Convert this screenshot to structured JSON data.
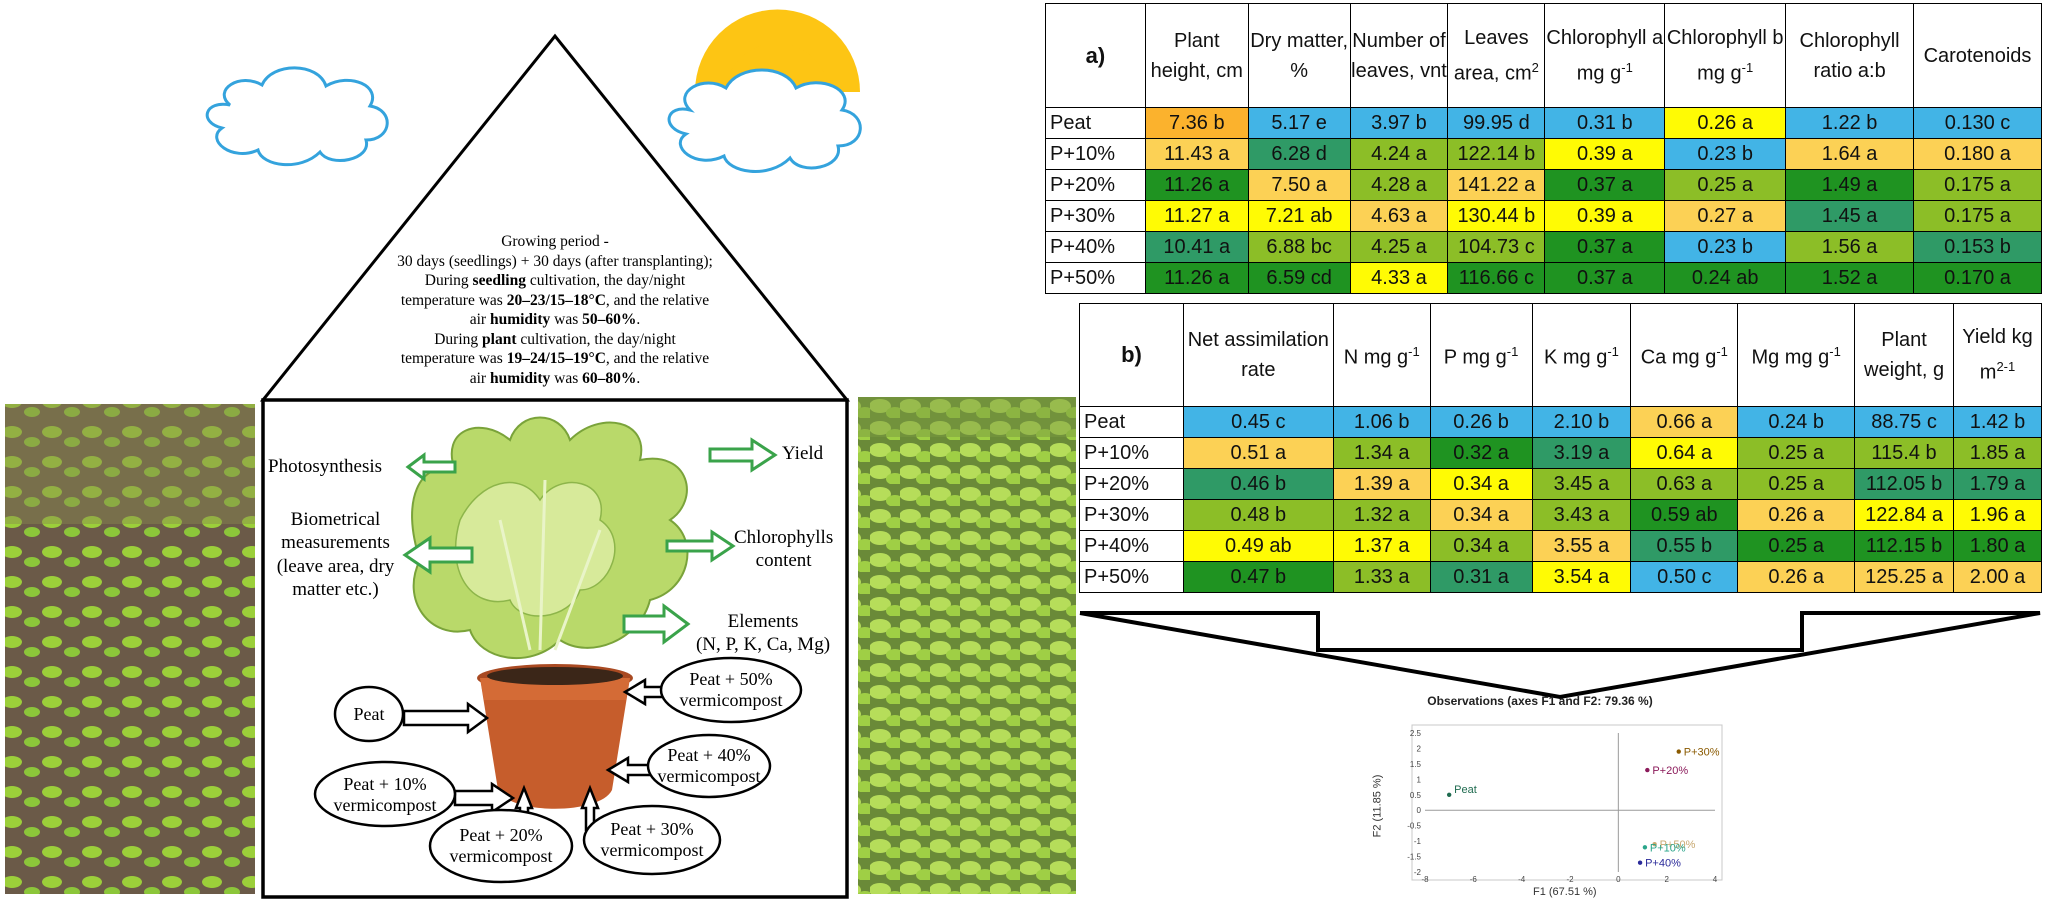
{
  "diagram": {
    "growing_period": {
      "l1": "Growing period -",
      "l2": "30 days (seedlings) + 30 days (after transplanting);",
      "l3a": "During ",
      "l3b": "seedling",
      "l3c": " cultivation, the day/night",
      "l4a": "temperature was ",
      "l4b": "20–23/15–18°C",
      "l4c": ", and the relative",
      "l5a": "air ",
      "l5b": "humidity",
      "l5c": " was ",
      "l5d": "50–60%",
      "l5e": ".",
      "l6a": "During ",
      "l6b": "plant",
      "l6c": " cultivation, the day/night",
      "l7a": "temperature was ",
      "l7b": "19–24/15–19°C",
      "l7c": ", and the relative",
      "l8a": "air ",
      "l8b": "humidity",
      "l8c": " was ",
      "l8d": "60–80%",
      "l8e": "."
    },
    "labels": {
      "photosynthesis": "Photosynthesis",
      "biometrical_1": "Biometrical",
      "biometrical_2": "measurements",
      "biometrical_3": "(leave area, dry",
      "biometrical_4": "matter etc.)",
      "yield": "Yield",
      "chlorophylls_1": "Chlorophylls",
      "chlorophylls_2": "content",
      "elements_1": "Elements",
      "elements_2": "(N, P, K, Ca, Mg)"
    },
    "ovals": {
      "peat": "Peat",
      "p10_1": "Peat + 10%",
      "p10_2": "vermicompost",
      "p20_1": "Peat + 20%",
      "p20_2": "vermicompost",
      "p30_1": "Peat + 30%",
      "p30_2": "vermicompost",
      "p40_1": "Peat + 40%",
      "p40_2": "vermicompost",
      "p50_1": "Peat + 50%",
      "p50_2": "vermicompost"
    }
  },
  "table_a": {
    "label": "a)",
    "headers": {
      "h1": "Plant height, cm",
      "h2": "Dry matter, %",
      "h3": "Number of leaves, vnt",
      "h4a": "Leaves area, cm",
      "h4b": "2",
      "h5a": "Chlorophyll a mg g",
      "h5b": "-1",
      "h6a": "Chlorophyll b mg g",
      "h6b": "-1",
      "h7": "Chlorophyll ratio a:b",
      "h8": "Carotenoids"
    },
    "rows": [
      {
        "name": "Peat",
        "cells": [
          "7.36 b",
          "5.17 e",
          "3.97 b",
          "99.95 d",
          "0.31 b",
          "0.26 a",
          "1.22 b",
          "0.130 c"
        ]
      },
      {
        "name": "P+10%",
        "cells": [
          "11.43 a",
          "6.28 d",
          "4.24 a",
          "122.14 b",
          "0.39 a",
          "0.23 b",
          "1.64 a",
          "0.180 a"
        ]
      },
      {
        "name": "P+20%",
        "cells": [
          "11.26 a",
          "7.50 a",
          "4.28 a",
          "141.22 a",
          "0.37 a",
          "0.25 a",
          "1.49 a",
          "0.175 a"
        ]
      },
      {
        "name": "P+30%",
        "cells": [
          "11.27 a",
          "7.21 ab",
          "4.63 a",
          "130.44 b",
          "0.39 a",
          "0.27 a",
          "1.45 a",
          "0.175 a"
        ]
      },
      {
        "name": "P+40%",
        "cells": [
          "10.41 a",
          "6.88 bc",
          "4.25 a",
          "104.73 c",
          "0.37 a",
          "0.23  b",
          "1.56 a",
          "0.153 b"
        ]
      },
      {
        "name": "P+50%",
        "cells": [
          "11.26 a",
          "6.59 cd",
          "4.33 a",
          "116.66 c",
          "0.37 a",
          "0.24 ab",
          "1.52 a",
          "0.170 a"
        ]
      }
    ]
  },
  "table_b": {
    "label": "b)",
    "headers": {
      "h1": "Net assimilation rate",
      "h2a": "N mg g",
      "h2b": "-1",
      "h3a": "P mg g",
      "h3b": "-1",
      "h4a": "K mg g",
      "h4b": "-1",
      "h5a": "Ca mg g",
      "h5b": "-1",
      "h6a": "Mg mg g",
      "h6b": "-1",
      "h7": "Plant weight, g",
      "h8a": "Yield kg m",
      "h8b": "2-1"
    },
    "rows": [
      {
        "name": "Peat",
        "cells": [
          "0.45 c",
          "1.06 b",
          "0.26 b",
          "2.10 b",
          "0.66 a",
          "0.24 b",
          "88.75 c",
          "1.42 b"
        ]
      },
      {
        "name": "P+10%",
        "cells": [
          "0.51 a",
          "1.34 a",
          "0.32 a",
          "3.19 a",
          "0.64 a",
          "0.25 a",
          "115.4 b",
          "1.85 a"
        ]
      },
      {
        "name": "P+20%",
        "cells": [
          "0.46 b",
          "1.39 a",
          "0.34 a",
          "3.45 a",
          "0.63 a",
          "0.25 a",
          "112.05 b",
          "1.79 a"
        ]
      },
      {
        "name": "P+30%",
        "cells": [
          "0.48 b",
          "1.32 a",
          "0.34 a",
          "3.43 a",
          "0.59 ab",
          "0.26 a",
          "122.84 a",
          "1.96 a"
        ]
      },
      {
        "name": "P+40%",
        "cells": [
          "0.49 ab",
          "1.37 a",
          "0.34 a",
          "3.55 a",
          "0.55 b",
          "0.25 a",
          "112.15 b",
          "1.80 a"
        ]
      },
      {
        "name": "P+50%",
        "cells": [
          "0.47 b",
          "1.33 a",
          "0.31 a",
          "3.54 a",
          "0.50 c",
          "0.26 a",
          "125.25 a",
          "2.00 a"
        ]
      }
    ]
  },
  "chart_data": {
    "type": "scatter",
    "title": "Observations (axes F1 and F2: 79.36 %)",
    "xlabel": "F1 (67.51 %)",
    "ylabel": "F2 (11.85 %)",
    "xlim": [
      -8,
      4
    ],
    "ylim": [
      -2,
      2.5
    ],
    "xticks": [
      -8,
      -6,
      -4,
      -2,
      0,
      2,
      4
    ],
    "yticks": [
      2.5,
      2,
      1.5,
      1,
      0.5,
      0,
      -0.5,
      -1,
      -1.5,
      -2
    ],
    "points": [
      {
        "label": "Peat",
        "x": -7.0,
        "y": 0.5,
        "color": "#1f6b4f"
      },
      {
        "label": "P+30%",
        "x": 2.5,
        "y": 1.9,
        "color": "#8a5a00"
      },
      {
        "label": "P+20%",
        "x": 1.2,
        "y": 1.3,
        "color": "#8b1a5a"
      },
      {
        "label": "P+50%",
        "x": 1.5,
        "y": -1.1,
        "color": "#c8a870"
      },
      {
        "label": "P+10%",
        "x": 1.1,
        "y": -1.2,
        "color": "#2aa58a"
      },
      {
        "label": "P+40%",
        "x": 0.9,
        "y": -1.7,
        "color": "#2a2a9a"
      }
    ]
  }
}
